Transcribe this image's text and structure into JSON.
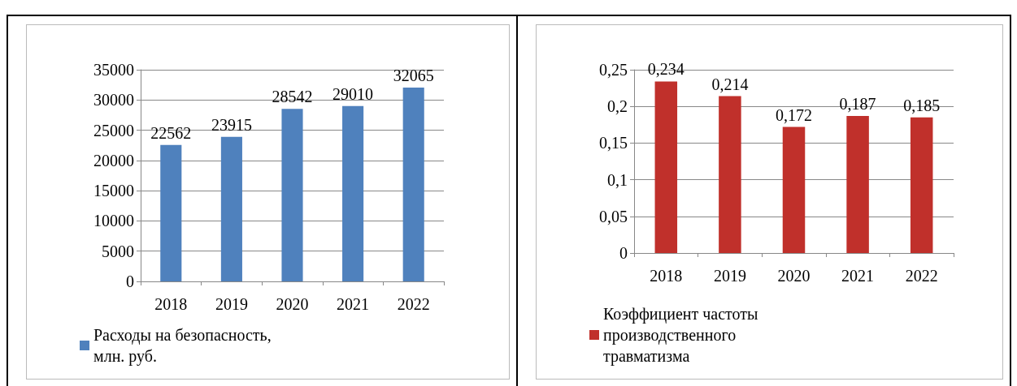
{
  "chart_data": [
    {
      "type": "bar",
      "categories": [
        "2018",
        "2019",
        "2020",
        "2021",
        "2022"
      ],
      "series": [
        {
          "name": "Расходы на безопасность, млн. руб.",
          "color": "#4f81bd",
          "values": [
            22562,
            23915,
            28542,
            29010,
            32065
          ]
        }
      ],
      "ylim": [
        0,
        35000
      ],
      "yticks": [
        0,
        5000,
        10000,
        15000,
        20000,
        25000,
        30000,
        35000
      ],
      "grid": "y",
      "legend": "bottom left",
      "data_labels": true
    },
    {
      "type": "bar",
      "categories": [
        "2018",
        "2019",
        "2020",
        "2021",
        "2022"
      ],
      "series": [
        {
          "name": "Коэффициент частоты производственного травматизма",
          "color": "#c0302b",
          "values": [
            0.234,
            0.214,
            0.172,
            0.187,
            0.185
          ],
          "value_labels": [
            "0,234",
            "0,214",
            "0,172",
            "0,187",
            "0,185"
          ]
        }
      ],
      "ylim": [
        0,
        0.25
      ],
      "yticks": [
        0,
        {
          "value": 0.05,
          "label": "0,05"
        },
        {
          "value": 0.1,
          "label": "0,1"
        },
        {
          "value": 0.15,
          "label": "0,15"
        },
        {
          "value": 0.2,
          "label": "0,2"
        },
        {
          "value": 0.25,
          "label": "0,25"
        }
      ],
      "grid": "y",
      "legend": "bottom left"
    }
  ]
}
